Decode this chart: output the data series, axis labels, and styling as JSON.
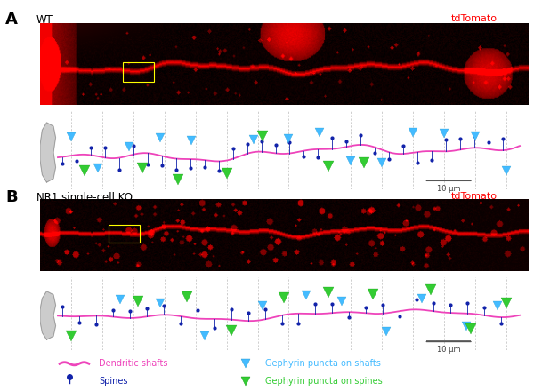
{
  "panel_A_label": "A",
  "panel_B_label": "B",
  "wt_label": "WT",
  "ko_label": "NR1 single-cell KO",
  "tdtomato_label": "tdTomato",
  "magenta": "#ee44bb",
  "cyan": "#44bbff",
  "green": "#33cc33",
  "navy": "#1122aa",
  "gray_soma": "#aaaaaa",
  "scalebar_label": "10 μm",
  "fig_width": 6.0,
  "fig_height": 4.4,
  "dpi": 100,
  "legend": {
    "shaft_color": "#ee44bb",
    "spine_color": "#1122aa",
    "cyan_color": "#44bbff",
    "green_color": "#33cc33"
  }
}
